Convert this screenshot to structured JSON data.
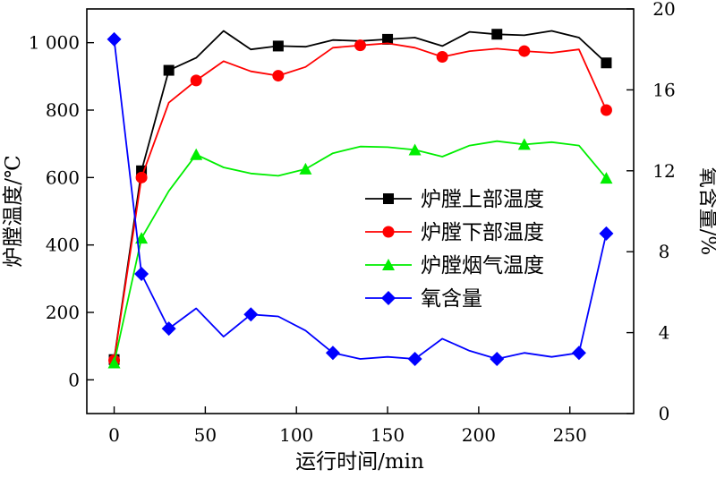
{
  "chart_data": {
    "type": "line",
    "xlabel": "运行时间/min",
    "ylabel": "炉膛温度/℃",
    "y2label": "氧含量/%",
    "xlim": [
      -15,
      285
    ],
    "ylim": [
      -100,
      1100
    ],
    "y2lim": [
      0,
      20
    ],
    "x_ticks": [
      0,
      50,
      100,
      150,
      200,
      250
    ],
    "y_ticks": [
      0,
      200,
      400,
      600,
      800,
      1000
    ],
    "y_tick_labels": [
      "0",
      "200",
      "400",
      "600",
      "800",
      "1 000"
    ],
    "y2_ticks": [
      0,
      4,
      8,
      12,
      16,
      20
    ],
    "grid": false,
    "legend_position": "center-right",
    "series": [
      {
        "name": "炉膛上部温度",
        "axis": "left",
        "color": "#000000",
        "marker": "square",
        "x": [
          0,
          15,
          30,
          45,
          60,
          75,
          90,
          105,
          120,
          135,
          150,
          165,
          180,
          195,
          210,
          225,
          240,
          255,
          270
        ],
        "y": [
          60,
          620,
          918,
          955,
          1035,
          980,
          990,
          988,
          1008,
          1005,
          1010,
          1015,
          990,
          1032,
          1025,
          1022,
          1035,
          1015,
          940
        ],
        "marker_x": [
          0,
          15,
          30,
          90,
          150,
          210,
          270
        ]
      },
      {
        "name": "炉膛下部温度",
        "axis": "left",
        "color": "#ff0000",
        "marker": "circle",
        "x": [
          0,
          15,
          30,
          45,
          60,
          75,
          90,
          105,
          120,
          135,
          150,
          165,
          180,
          195,
          210,
          225,
          240,
          255,
          270
        ],
        "y": [
          58,
          600,
          822,
          888,
          945,
          915,
          902,
          928,
          985,
          992,
          998,
          985,
          958,
          975,
          982,
          975,
          970,
          980,
          800
        ],
        "marker_x": [
          0,
          15,
          45,
          90,
          135,
          180,
          225,
          270
        ]
      },
      {
        "name": "炉膛烟气温度",
        "axis": "left",
        "color": "#00ee00",
        "marker": "triangle",
        "x": [
          0,
          15,
          30,
          45,
          60,
          75,
          90,
          105,
          120,
          135,
          150,
          165,
          180,
          195,
          210,
          225,
          240,
          255,
          270
        ],
        "y": [
          50,
          420,
          560,
          668,
          630,
          612,
          605,
          625,
          672,
          692,
          690,
          682,
          662,
          695,
          708,
          698,
          705,
          695,
          598
        ],
        "marker_x": [
          0,
          15,
          45,
          105,
          165,
          225,
          270
        ]
      },
      {
        "name": "氧含量",
        "axis": "right",
        "color": "#0000ff",
        "marker": "diamond",
        "x": [
          0,
          15,
          30,
          45,
          60,
          75,
          90,
          105,
          120,
          135,
          150,
          165,
          180,
          195,
          210,
          225,
          240,
          255,
          270
        ],
        "y": [
          18.5,
          6.9,
          4.2,
          5.2,
          3.8,
          4.9,
          4.8,
          4.1,
          3.0,
          2.7,
          2.8,
          2.7,
          3.7,
          3.1,
          2.7,
          3.0,
          2.8,
          3.0,
          8.9
        ],
        "marker_x": [
          0,
          15,
          30,
          75,
          120,
          165,
          210,
          255,
          270
        ]
      }
    ]
  }
}
